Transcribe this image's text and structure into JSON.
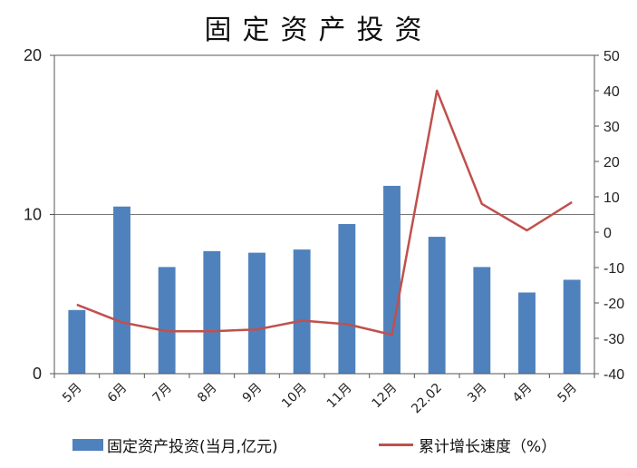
{
  "chart_data": {
    "type": "bar",
    "title": "固定资产投资",
    "categories": [
      "5月",
      "6月",
      "7月",
      "8月",
      "9月",
      "10月",
      "11月",
      "12月",
      "22.02",
      "3月",
      "4月",
      "5月"
    ],
    "series": [
      {
        "name": "固定资产投资(当月,亿元)",
        "type": "bar",
        "axis": "left",
        "color": "#4F81BD",
        "values": [
          4.0,
          10.5,
          6.7,
          7.7,
          7.6,
          7.8,
          9.4,
          11.8,
          8.6,
          6.7,
          5.1,
          5.9
        ]
      },
      {
        "name": "累计增长速度（%）",
        "type": "line",
        "axis": "right",
        "color": "#C0504D",
        "values": [
          -20.5,
          -25.5,
          -28,
          -28,
          -27.5,
          -25,
          -26,
          -29,
          40,
          8,
          0.5,
          8.5
        ]
      }
    ],
    "y_left": {
      "lim": [
        0,
        20
      ],
      "ticks": [
        0,
        10,
        20
      ]
    },
    "y_right": {
      "lim": [
        -40,
        50
      ],
      "ticks": [
        -40,
        -30,
        -20,
        -10,
        0,
        10,
        20,
        30,
        40,
        50
      ]
    },
    "grid": "horizontal-major-left",
    "legend_position": "bottom"
  }
}
